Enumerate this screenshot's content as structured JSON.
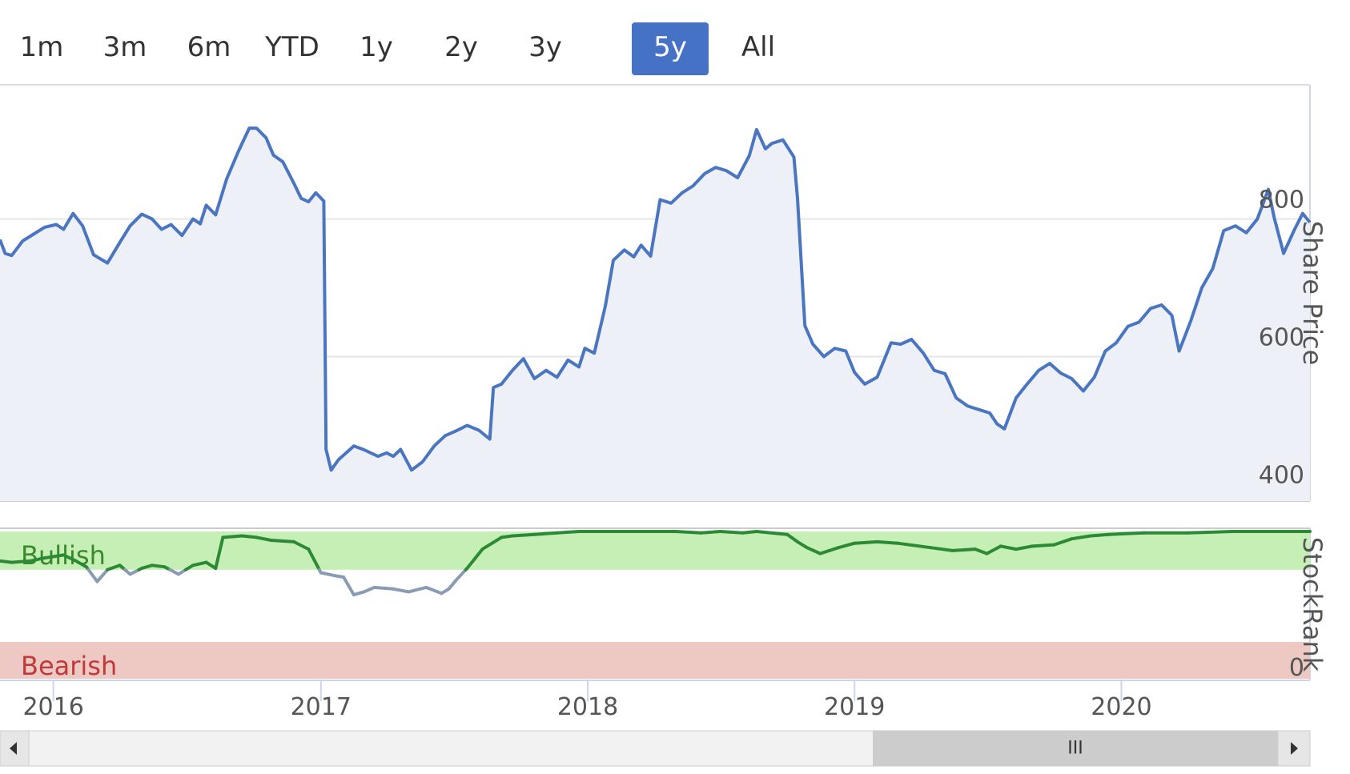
{
  "range_selector": {
    "buttons": [
      "1m",
      "3m",
      "6m",
      "YTD",
      "1y",
      "2y",
      "3y",
      "5y",
      "All"
    ],
    "active": "5y"
  },
  "chart_data": [
    {
      "type": "line",
      "title": "",
      "ylabel": "Share Price",
      "ylim": [
        390,
        995
      ],
      "yticks": [
        400,
        600,
        800
      ],
      "xlim": [
        "2015-10-20",
        "2020-09-15"
      ],
      "xticks": [
        "2016",
        "2017",
        "2018",
        "2019",
        "2020"
      ],
      "grid": true,
      "area_fill": true,
      "color": "#4a75c0",
      "series": [
        {
          "name": "",
          "points": [
            [
              "2015-10-20",
              770
            ],
            [
              "2015-10-27",
              750
            ],
            [
              "2015-11-05",
              747
            ],
            [
              "2015-11-20",
              768
            ],
            [
              "2015-12-05",
              778
            ],
            [
              "2015-12-20",
              788
            ],
            [
              "2016-01-05",
              792
            ],
            [
              "2016-01-15",
              785
            ],
            [
              "2016-01-28",
              808
            ],
            [
              "2016-02-10",
              790
            ],
            [
              "2016-02-25",
              748
            ],
            [
              "2016-03-15",
              736
            ],
            [
              "2016-04-01",
              766
            ],
            [
              "2016-04-15",
              790
            ],
            [
              "2016-05-01",
              807
            ],
            [
              "2016-05-15",
              800
            ],
            [
              "2016-05-28",
              785
            ],
            [
              "2016-06-10",
              792
            ],
            [
              "2016-06-25",
              776
            ],
            [
              "2016-07-10",
              800
            ],
            [
              "2016-07-20",
              793
            ],
            [
              "2016-07-28",
              820
            ],
            [
              "2016-08-10",
              806
            ],
            [
              "2016-08-25",
              858
            ],
            [
              "2016-09-10",
              898
            ],
            [
              "2016-09-25",
              932
            ],
            [
              "2016-10-05",
              932
            ],
            [
              "2016-10-18",
              918
            ],
            [
              "2016-10-28",
              893
            ],
            [
              "2016-11-10",
              883
            ],
            [
              "2016-11-25",
              852
            ],
            [
              "2016-12-05",
              830
            ],
            [
              "2016-12-15",
              825
            ],
            [
              "2016-12-25",
              838
            ],
            [
              "2017-01-05",
              826
            ],
            [
              "2017-01-08",
              465
            ],
            [
              "2017-01-15",
              435
            ],
            [
              "2017-01-25",
              450
            ],
            [
              "2017-02-15",
              470
            ],
            [
              "2017-02-28",
              465
            ],
            [
              "2017-03-20",
              455
            ],
            [
              "2017-04-01",
              460
            ],
            [
              "2017-04-10",
              455
            ],
            [
              "2017-04-20",
              465
            ],
            [
              "2017-05-05",
              435
            ],
            [
              "2017-05-20",
              447
            ],
            [
              "2017-06-05",
              470
            ],
            [
              "2017-06-20",
              485
            ],
            [
              "2017-07-05",
              492
            ],
            [
              "2017-07-20",
              500
            ],
            [
              "2017-08-05",
              493
            ],
            [
              "2017-08-20",
              480
            ],
            [
              "2017-08-25",
              555
            ],
            [
              "2017-09-05",
              560
            ],
            [
              "2017-09-20",
              580
            ],
            [
              "2017-10-05",
              597
            ],
            [
              "2017-10-20",
              568
            ],
            [
              "2017-11-05",
              580
            ],
            [
              "2017-11-20",
              570
            ],
            [
              "2017-12-05",
              595
            ],
            [
              "2017-12-20",
              585
            ],
            [
              "2017-12-28",
              612
            ],
            [
              "2018-01-10",
              605
            ],
            [
              "2018-01-25",
              673
            ],
            [
              "2018-02-05",
              740
            ],
            [
              "2018-02-20",
              755
            ],
            [
              "2018-03-05",
              745
            ],
            [
              "2018-03-15",
              762
            ],
            [
              "2018-03-28",
              746
            ],
            [
              "2018-04-10",
              828
            ],
            [
              "2018-04-25",
              823
            ],
            [
              "2018-05-10",
              838
            ],
            [
              "2018-05-25",
              848
            ],
            [
              "2018-06-10",
              866
            ],
            [
              "2018-06-25",
              875
            ],
            [
              "2018-07-10",
              870
            ],
            [
              "2018-07-25",
              860
            ],
            [
              "2018-08-10",
              892
            ],
            [
              "2018-08-20",
              930
            ],
            [
              "2018-09-01",
              902
            ],
            [
              "2018-09-10",
              910
            ],
            [
              "2018-09-25",
              915
            ],
            [
              "2018-10-10",
              890
            ],
            [
              "2018-10-15",
              830
            ],
            [
              "2018-10-25",
              645
            ],
            [
              "2018-11-05",
              618
            ],
            [
              "2018-11-20",
              600
            ],
            [
              "2018-12-05",
              612
            ],
            [
              "2018-12-20",
              608
            ],
            [
              "2019-01-01",
              577
            ],
            [
              "2019-01-15",
              560
            ],
            [
              "2019-02-01",
              570
            ],
            [
              "2019-02-20",
              620
            ],
            [
              "2019-03-05",
              618
            ],
            [
              "2019-03-20",
              625
            ],
            [
              "2019-04-05",
              605
            ],
            [
              "2019-04-20",
              580
            ],
            [
              "2019-05-05",
              575
            ],
            [
              "2019-05-20",
              540
            ],
            [
              "2019-06-05",
              528
            ],
            [
              "2019-06-20",
              523
            ],
            [
              "2019-07-05",
              518
            ],
            [
              "2019-07-15",
              502
            ],
            [
              "2019-07-25",
              495
            ],
            [
              "2019-08-10",
              540
            ],
            [
              "2019-08-25",
              560
            ],
            [
              "2019-09-10",
              580
            ],
            [
              "2019-09-25",
              590
            ],
            [
              "2019-10-10",
              576
            ],
            [
              "2019-10-25",
              568
            ],
            [
              "2019-11-10",
              550
            ],
            [
              "2019-11-25",
              570
            ],
            [
              "2019-12-10",
              608
            ],
            [
              "2019-12-25",
              620
            ],
            [
              "2020-01-10",
              644
            ],
            [
              "2020-01-25",
              650
            ],
            [
              "2020-02-10",
              670
            ],
            [
              "2020-02-25",
              675
            ],
            [
              "2020-03-10",
              660
            ],
            [
              "2020-03-20",
              608
            ],
            [
              "2020-04-05",
              652
            ],
            [
              "2020-04-20",
              700
            ],
            [
              "2020-05-05",
              728
            ],
            [
              "2020-05-20",
              783
            ],
            [
              "2020-06-05",
              790
            ],
            [
              "2020-06-20",
              780
            ],
            [
              "2020-07-05",
              800
            ],
            [
              "2020-07-20",
              843
            ],
            [
              "2020-07-28",
              802
            ],
            [
              "2020-08-10",
              750
            ],
            [
              "2020-08-25",
              785
            ],
            [
              "2020-09-05",
              808
            ],
            [
              "2020-09-15",
              795
            ]
          ]
        }
      ]
    },
    {
      "type": "line",
      "title": "",
      "ylabel": "StockRank",
      "ylim": [
        0,
        100
      ],
      "yticks": [
        0
      ],
      "xlim": [
        "2015-10-20",
        "2020-09-15"
      ],
      "xticks": [
        "2016",
        "2017",
        "2018",
        "2019",
        "2020"
      ],
      "bands": [
        {
          "label": "Bullish",
          "from": 74,
          "to": 100,
          "color": "#c6efb6",
          "text_color": "#3a8a2c"
        },
        {
          "label": "Bearish",
          "from": 0,
          "to": 25,
          "color": "#eec8c2",
          "text_color": "#c0393b"
        }
      ],
      "threshold": 74,
      "colors": {
        "above": "#2c8a36",
        "below": "#8a9bb4"
      },
      "series": [
        {
          "name": "",
          "points": [
            [
              "2015-10-20",
              80
            ],
            [
              "2015-11-05",
              79
            ],
            [
              "2015-12-01",
              80
            ],
            [
              "2015-12-20",
              82
            ],
            [
              "2016-01-15",
              84
            ],
            [
              "2016-02-01",
              80
            ],
            [
              "2016-02-15",
              76
            ],
            [
              "2016-03-01",
              66
            ],
            [
              "2016-03-15",
              74
            ],
            [
              "2016-04-01",
              77
            ],
            [
              "2016-04-15",
              71
            ],
            [
              "2016-05-01",
              75
            ],
            [
              "2016-05-15",
              77
            ],
            [
              "2016-06-01",
              76
            ],
            [
              "2016-06-20",
              71
            ],
            [
              "2016-07-10",
              77
            ],
            [
              "2016-07-28",
              79
            ],
            [
              "2016-08-10",
              75
            ],
            [
              "2016-08-20",
              96
            ],
            [
              "2016-09-15",
              97
            ],
            [
              "2016-10-05",
              96
            ],
            [
              "2016-10-25",
              94
            ],
            [
              "2016-11-25",
              93
            ],
            [
              "2016-12-15",
              88
            ],
            [
              "2017-01-01",
              72
            ],
            [
              "2017-01-20",
              70
            ],
            [
              "2017-02-01",
              69
            ],
            [
              "2017-02-15",
              57
            ],
            [
              "2017-03-01",
              59
            ],
            [
              "2017-03-15",
              62
            ],
            [
              "2017-04-10",
              61
            ],
            [
              "2017-05-01",
              59
            ],
            [
              "2017-05-25",
              62
            ],
            [
              "2017-06-15",
              58
            ],
            [
              "2017-06-25",
              61
            ],
            [
              "2017-07-05",
              67
            ],
            [
              "2017-07-20",
              75
            ],
            [
              "2017-08-10",
              88
            ],
            [
              "2017-09-05",
              96
            ],
            [
              "2017-09-20",
              97
            ],
            [
              "2017-10-20",
              98
            ],
            [
              "2017-11-20",
              99
            ],
            [
              "2017-12-20",
              100
            ],
            [
              "2018-03-01",
              100
            ],
            [
              "2018-05-01",
              100
            ],
            [
              "2018-06-05",
              99
            ],
            [
              "2018-07-01",
              100
            ],
            [
              "2018-08-01",
              99
            ],
            [
              "2018-08-20",
              100
            ],
            [
              "2018-10-01",
              98
            ],
            [
              "2018-10-15",
              93
            ],
            [
              "2018-10-28",
              89
            ],
            [
              "2018-11-15",
              85
            ],
            [
              "2018-12-10",
              89
            ],
            [
              "2019-01-01",
              92
            ],
            [
              "2019-02-01",
              93
            ],
            [
              "2019-03-01",
              92
            ],
            [
              "2019-04-15",
              89
            ],
            [
              "2019-05-15",
              87
            ],
            [
              "2019-06-15",
              88
            ],
            [
              "2019-07-01",
              85
            ],
            [
              "2019-07-20",
              90
            ],
            [
              "2019-08-10",
              88
            ],
            [
              "2019-09-01",
              90
            ],
            [
              "2019-10-01",
              91
            ],
            [
              "2019-10-25",
              95
            ],
            [
              "2019-11-20",
              97
            ],
            [
              "2019-12-15",
              98
            ],
            [
              "2020-02-01",
              99
            ],
            [
              "2020-04-01",
              99
            ],
            [
              "2020-06-01",
              100
            ],
            [
              "2020-07-15",
              100
            ],
            [
              "2020-08-01",
              101
            ],
            [
              "2020-09-15",
              100
            ]
          ]
        }
      ]
    }
  ],
  "x_axis": {
    "labels": [
      "2016",
      "2017",
      "2018",
      "2019",
      "2020"
    ]
  },
  "navigator": {
    "handle": "III"
  }
}
